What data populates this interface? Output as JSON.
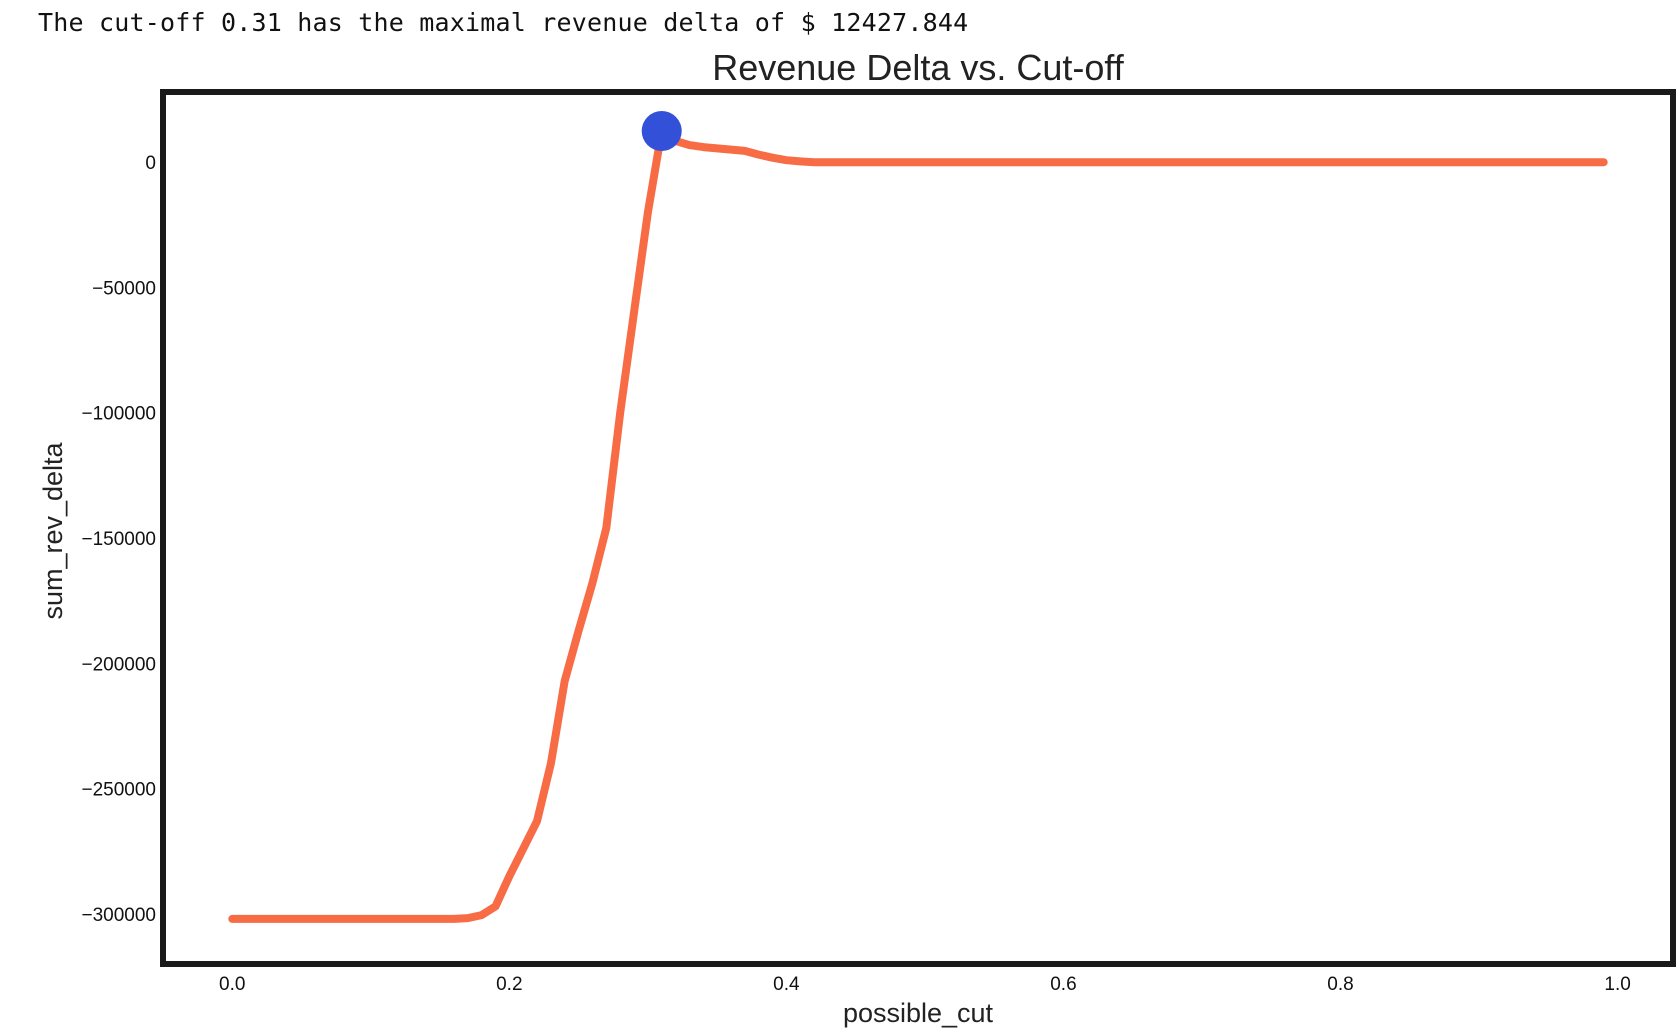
{
  "output": {
    "text": "The cut-off 0.31 has the maximal revenue delta of $ 12427.844"
  },
  "chart_data": {
    "type": "line",
    "title": "Revenue Delta vs. Cut-off",
    "xlabel": "possible_cut",
    "ylabel": "sum_rev_delta",
    "xlim": [
      -0.05,
      1.04
    ],
    "ylim": [
      -320000,
      28000
    ],
    "x_ticks": [
      0.0,
      0.2,
      0.4,
      0.6,
      0.8,
      1.0
    ],
    "x_tick_labels": [
      "0.0",
      "0.2",
      "0.4",
      "0.6",
      "0.8",
      "1.0"
    ],
    "y_ticks": [
      0,
      -50000,
      -100000,
      -150000,
      -200000,
      -250000,
      -300000
    ],
    "y_tick_labels": [
      "0",
      "−50000",
      "−100000",
      "−150000",
      "−200000",
      "−250000",
      "−300000"
    ],
    "grid": false,
    "series": [
      {
        "color": "#f76b45",
        "x": [
          0.0,
          0.02,
          0.04,
          0.06,
          0.08,
          0.1,
          0.12,
          0.14,
          0.16,
          0.17,
          0.18,
          0.19,
          0.2,
          0.21,
          0.22,
          0.23,
          0.24,
          0.25,
          0.26,
          0.27,
          0.28,
          0.29,
          0.3,
          0.31,
          0.32,
          0.33,
          0.34,
          0.35,
          0.36,
          0.37,
          0.38,
          0.39,
          0.4,
          0.41,
          0.42,
          0.5,
          0.6,
          0.7,
          0.8,
          0.9,
          0.99
        ],
        "y": [
          -302000,
          -302000,
          -302000,
          -302000,
          -302000,
          -302000,
          -302000,
          -302000,
          -302000,
          -301700,
          -300500,
          -297000,
          -285000,
          -274000,
          -263000,
          -240000,
          -207000,
          -187000,
          -168000,
          -146000,
          -100000,
          -60000,
          -20000,
          12428,
          8500,
          6800,
          6000,
          5500,
          5000,
          4500,
          3000,
          1800,
          800,
          300,
          0,
          0,
          0,
          0,
          0,
          0,
          0
        ]
      }
    ],
    "highlight": {
      "x": 0.31,
      "y": 12427.844,
      "color": "#3350d8"
    }
  }
}
